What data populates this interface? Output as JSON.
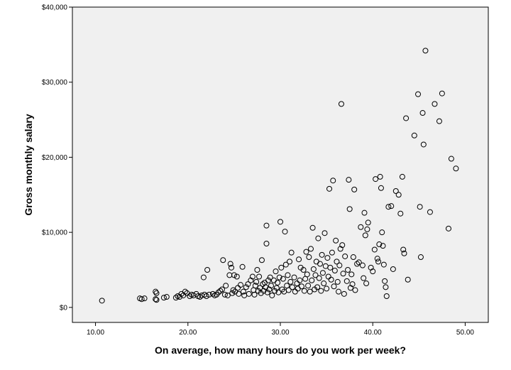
{
  "chart_data": {
    "type": "scatter",
    "title": "",
    "xlabel": "On average, how many hours do you work per week?",
    "ylabel": "Gross monthly salary",
    "xlim": [
      7.5,
      52.5
    ],
    "ylim": [
      -2000,
      40000
    ],
    "x_ticks": [
      10,
      20,
      30,
      40,
      50
    ],
    "x_tick_labels": [
      "10.00",
      "20.00",
      "30.00",
      "40.00",
      "50.00"
    ],
    "y_ticks": [
      0,
      10000,
      20000,
      30000,
      40000
    ],
    "y_tick_labels": [
      "$0",
      "$10,000",
      "$20,000",
      "$30,000",
      "$40,000"
    ],
    "grid": false,
    "colors": {
      "plot_background": "#f0f0f0",
      "marker_stroke": "#000000",
      "page_background": "#ffffff"
    },
    "points": [
      [
        10.7,
        900
      ],
      [
        14.8,
        1200
      ],
      [
        15.0,
        1100
      ],
      [
        15.3,
        1200
      ],
      [
        16.5,
        2100
      ],
      [
        16.6,
        1900
      ],
      [
        16.5,
        1100
      ],
      [
        16.6,
        1000
      ],
      [
        17.4,
        1300
      ],
      [
        17.7,
        1400
      ],
      [
        18.7,
        1300
      ],
      [
        18.9,
        1500
      ],
      [
        19.1,
        1400
      ],
      [
        19.3,
        1800
      ],
      [
        19.5,
        1600
      ],
      [
        19.7,
        2100
      ],
      [
        19.9,
        1900
      ],
      [
        20.2,
        1500
      ],
      [
        20.4,
        1700
      ],
      [
        20.6,
        1600
      ],
      [
        20.9,
        1800
      ],
      [
        21.1,
        1500
      ],
      [
        21.3,
        1400
      ],
      [
        21.5,
        1600
      ],
      [
        21.7,
        4000
      ],
      [
        21.8,
        1700
      ],
      [
        22.0,
        1500
      ],
      [
        22.1,
        5000
      ],
      [
        22.3,
        1700
      ],
      [
        22.7,
        1800
      ],
      [
        22.9,
        1600
      ],
      [
        23.1,
        1700
      ],
      [
        23.3,
        2000
      ],
      [
        23.5,
        2200
      ],
      [
        23.7,
        2400
      ],
      [
        23.8,
        6300
      ],
      [
        24.0,
        1700
      ],
      [
        24.1,
        2900
      ],
      [
        24.3,
        1600
      ],
      [
        24.5,
        4300
      ],
      [
        24.6,
        5800
      ],
      [
        24.7,
        5300
      ],
      [
        24.8,
        1900
      ],
      [
        24.9,
        2300
      ],
      [
        25.0,
        4300
      ],
      [
        25.1,
        2100
      ],
      [
        25.3,
        4100
      ],
      [
        25.4,
        2600
      ],
      [
        25.5,
        1800
      ],
      [
        25.7,
        3000
      ],
      [
        25.9,
        5400
      ],
      [
        26.0,
        2100
      ],
      [
        26.1,
        1600
      ],
      [
        26.3,
        2700
      ],
      [
        26.5,
        3100
      ],
      [
        26.6,
        1800
      ],
      [
        26.8,
        3600
      ],
      [
        27.0,
        4100
      ],
      [
        27.1,
        2300
      ],
      [
        27.2,
        1700
      ],
      [
        27.3,
        2900
      ],
      [
        27.4,
        3400
      ],
      [
        27.5,
        5000
      ],
      [
        27.6,
        2200
      ],
      [
        27.7,
        4100
      ],
      [
        27.8,
        2600
      ],
      [
        27.9,
        1900
      ],
      [
        28.0,
        6300
      ],
      [
        28.1,
        3100
      ],
      [
        28.2,
        2200
      ],
      [
        28.3,
        3300
      ],
      [
        28.4,
        2700
      ],
      [
        28.5,
        10900
      ],
      [
        28.5,
        8500
      ],
      [
        28.6,
        2000
      ],
      [
        28.7,
        3600
      ],
      [
        28.8,
        2400
      ],
      [
        28.9,
        4000
      ],
      [
        29.0,
        2900
      ],
      [
        29.1,
        1600
      ],
      [
        29.3,
        3600
      ],
      [
        29.4,
        2200
      ],
      [
        29.5,
        4800
      ],
      [
        29.6,
        2600
      ],
      [
        29.7,
        3300
      ],
      [
        29.8,
        2000
      ],
      [
        29.9,
        4000
      ],
      [
        30.0,
        11400
      ],
      [
        30.1,
        5300
      ],
      [
        30.2,
        2400
      ],
      [
        30.3,
        3800
      ],
      [
        30.4,
        2100
      ],
      [
        30.5,
        10100
      ],
      [
        30.6,
        5700
      ],
      [
        30.7,
        2900
      ],
      [
        30.8,
        4300
      ],
      [
        30.9,
        2300
      ],
      [
        31.0,
        6100
      ],
      [
        31.1,
        3400
      ],
      [
        31.2,
        7300
      ],
      [
        31.3,
        2700
      ],
      [
        31.5,
        4000
      ],
      [
        31.6,
        2100
      ],
      [
        31.8,
        3200
      ],
      [
        31.9,
        2500
      ],
      [
        32.0,
        6400
      ],
      [
        32.1,
        3600
      ],
      [
        32.2,
        5300
      ],
      [
        32.3,
        2800
      ],
      [
        32.5,
        5000
      ],
      [
        32.6,
        2200
      ],
      [
        32.7,
        3800
      ],
      [
        32.8,
        7400
      ],
      [
        32.9,
        4400
      ],
      [
        33.0,
        2900
      ],
      [
        33.1,
        6700
      ],
      [
        33.2,
        2100
      ],
      [
        33.3,
        7800
      ],
      [
        33.4,
        3600
      ],
      [
        33.5,
        10600
      ],
      [
        33.6,
        5100
      ],
      [
        33.7,
        2400
      ],
      [
        33.8,
        4300
      ],
      [
        33.9,
        6100
      ],
      [
        34.0,
        2700
      ],
      [
        34.1,
        9200
      ],
      [
        34.2,
        3900
      ],
      [
        34.3,
        5800
      ],
      [
        34.4,
        2200
      ],
      [
        34.5,
        7000
      ],
      [
        34.6,
        4600
      ],
      [
        34.7,
        3200
      ],
      [
        34.8,
        9900
      ],
      [
        34.9,
        5500
      ],
      [
        35.0,
        2500
      ],
      [
        35.1,
        6600
      ],
      [
        35.2,
        4100
      ],
      [
        35.3,
        15800
      ],
      [
        35.4,
        5300
      ],
      [
        35.5,
        3700
      ],
      [
        35.6,
        7300
      ],
      [
        35.7,
        16900
      ],
      [
        35.8,
        2800
      ],
      [
        35.9,
        4900
      ],
      [
        36.0,
        8900
      ],
      [
        36.1,
        6100
      ],
      [
        36.2,
        3400
      ],
      [
        36.3,
        2100
      ],
      [
        36.4,
        5600
      ],
      [
        36.5,
        7800
      ],
      [
        36.6,
        27100
      ],
      [
        36.7,
        8300
      ],
      [
        36.8,
        4500
      ],
      [
        36.9,
        1800
      ],
      [
        37.0,
        6800
      ],
      [
        37.2,
        3500
      ],
      [
        37.3,
        5000
      ],
      [
        37.4,
        17000
      ],
      [
        37.5,
        13100
      ],
      [
        37.6,
        2600
      ],
      [
        37.7,
        4400
      ],
      [
        37.8,
        3100
      ],
      [
        37.9,
        6700
      ],
      [
        38.0,
        15700
      ],
      [
        38.1,
        2300
      ],
      [
        38.3,
        5800
      ],
      [
        38.5,
        6000
      ],
      [
        38.7,
        10700
      ],
      [
        38.9,
        5600
      ],
      [
        39.0,
        3900
      ],
      [
        39.1,
        12600
      ],
      [
        39.2,
        9600
      ],
      [
        39.3,
        3200
      ],
      [
        39.4,
        10400
      ],
      [
        39.5,
        11300
      ],
      [
        39.8,
        5300
      ],
      [
        40.0,
        4800
      ],
      [
        40.2,
        7700
      ],
      [
        40.3,
        17100
      ],
      [
        40.5,
        6500
      ],
      [
        40.6,
        6100
      ],
      [
        40.7,
        8400
      ],
      [
        40.8,
        17400
      ],
      [
        40.9,
        15900
      ],
      [
        41.0,
        10000
      ],
      [
        41.1,
        8200
      ],
      [
        41.2,
        5700
      ],
      [
        41.3,
        3500
      ],
      [
        41.4,
        2700
      ],
      [
        41.5,
        1500
      ],
      [
        41.7,
        13400
      ],
      [
        42.0,
        13500
      ],
      [
        42.2,
        5100
      ],
      [
        42.5,
        15500
      ],
      [
        42.8,
        15000
      ],
      [
        43.0,
        12500
      ],
      [
        43.2,
        17400
      ],
      [
        43.3,
        7700
      ],
      [
        43.4,
        7200
      ],
      [
        43.6,
        25200
      ],
      [
        43.8,
        3700
      ],
      [
        44.5,
        22900
      ],
      [
        44.9,
        28400
      ],
      [
        45.1,
        13400
      ],
      [
        45.2,
        6700
      ],
      [
        45.4,
        25900
      ],
      [
        45.5,
        21700
      ],
      [
        45.7,
        34200
      ],
      [
        46.2,
        12700
      ],
      [
        46.7,
        27100
      ],
      [
        47.2,
        24800
      ],
      [
        47.5,
        28500
      ],
      [
        48.2,
        10500
      ],
      [
        48.5,
        19800
      ],
      [
        49.0,
        18500
      ]
    ]
  }
}
